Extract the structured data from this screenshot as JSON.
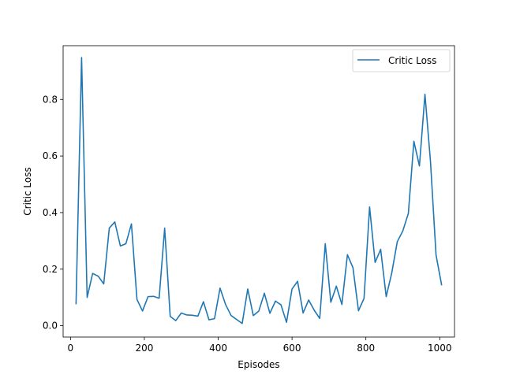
{
  "chart_data": {
    "type": "line",
    "title": "",
    "xlabel": "Episodes",
    "ylabel": "Critic Loss",
    "xlim": [
      -20,
      1040
    ],
    "ylim": [
      -0.04,
      0.99
    ],
    "xticks": [
      0,
      200,
      400,
      600,
      800,
      1000
    ],
    "yticks": [
      0.0,
      0.2,
      0.4,
      0.6,
      0.8
    ],
    "xtick_labels": [
      "0",
      "200",
      "400",
      "600",
      "800",
      "1000"
    ],
    "ytick_labels": [
      "0.0",
      "0.2",
      "0.4",
      "0.6",
      "0.8"
    ],
    "grid": false,
    "legend": {
      "position": "upper-right",
      "entries": [
        "Critic Loss"
      ]
    },
    "series": [
      {
        "name": "Critic Loss",
        "color": "#1f77b4",
        "x": [
          15,
          30,
          45,
          60,
          75,
          90,
          105,
          120,
          135,
          150,
          165,
          180,
          195,
          210,
          225,
          240,
          255,
          270,
          285,
          300,
          315,
          330,
          345,
          360,
          375,
          390,
          405,
          420,
          435,
          450,
          465,
          480,
          495,
          510,
          525,
          540,
          555,
          570,
          585,
          600,
          615,
          630,
          645,
          660,
          675,
          690,
          705,
          720,
          735,
          750,
          765,
          780,
          795,
          810,
          825,
          840,
          855,
          870,
          885,
          900,
          915,
          930,
          945,
          960,
          975,
          990,
          1005
        ],
        "y": [
          0.078,
          0.948,
          0.1,
          0.185,
          0.175,
          0.148,
          0.345,
          0.367,
          0.282,
          0.29,
          0.36,
          0.093,
          0.052,
          0.103,
          0.104,
          0.097,
          0.345,
          0.033,
          0.018,
          0.045,
          0.038,
          0.037,
          0.034,
          0.085,
          0.021,
          0.025,
          0.133,
          0.075,
          0.036,
          0.022,
          0.008,
          0.13,
          0.036,
          0.052,
          0.115,
          0.044,
          0.087,
          0.074,
          0.012,
          0.13,
          0.157,
          0.045,
          0.091,
          0.055,
          0.026,
          0.29,
          0.083,
          0.14,
          0.075,
          0.251,
          0.205,
          0.053,
          0.097,
          0.42,
          0.224,
          0.27,
          0.103,
          0.186,
          0.297,
          0.335,
          0.397,
          0.652,
          0.565,
          0.818,
          0.58,
          0.25,
          0.145
        ]
      }
    ]
  }
}
